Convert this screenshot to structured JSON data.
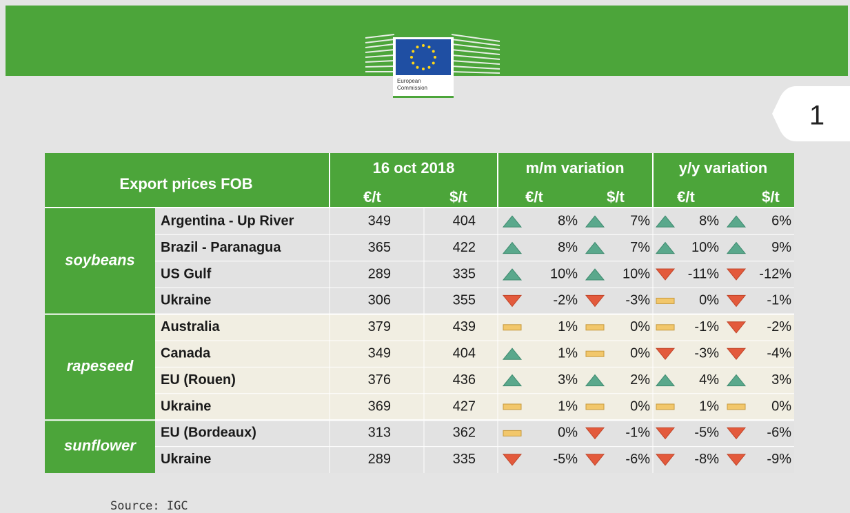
{
  "logo": {
    "lines": [
      "European",
      "Commission"
    ]
  },
  "page_number": "1",
  "table": {
    "header": {
      "title": "Export prices FOB",
      "groups": [
        "16 oct 2018",
        "m/m variation",
        "y/y variation"
      ],
      "units": [
        "€/t",
        "$/t",
        "€/t",
        "$/t",
        "€/t",
        "$/t"
      ]
    },
    "groups": [
      {
        "name": "soybeans",
        "rows": [
          {
            "origin": "Argentina - Up River",
            "prices": [
              "349",
              "404"
            ],
            "variations": [
              {
                "text": "8%",
                "trend": "up"
              },
              {
                "text": "7%",
                "trend": "up"
              },
              {
                "text": "8%",
                "trend": "up"
              },
              {
                "text": "6%",
                "trend": "up"
              }
            ]
          },
          {
            "origin": "Brazil - Paranagua",
            "prices": [
              "365",
              "422"
            ],
            "variations": [
              {
                "text": "8%",
                "trend": "up"
              },
              {
                "text": "7%",
                "trend": "up"
              },
              {
                "text": "10%",
                "trend": "up"
              },
              {
                "text": "9%",
                "trend": "up"
              }
            ]
          },
          {
            "origin": "US Gulf",
            "prices": [
              "289",
              "335"
            ],
            "variations": [
              {
                "text": "10%",
                "trend": "up"
              },
              {
                "text": "10%",
                "trend": "up"
              },
              {
                "text": "-11%",
                "trend": "down"
              },
              {
                "text": "-12%",
                "trend": "down"
              }
            ]
          },
          {
            "origin": "Ukraine",
            "prices": [
              "306",
              "355"
            ],
            "variations": [
              {
                "text": "-2%",
                "trend": "down"
              },
              {
                "text": "-3%",
                "trend": "down"
              },
              {
                "text": "0%",
                "trend": "flat"
              },
              {
                "text": "-1%",
                "trend": "down"
              }
            ]
          }
        ]
      },
      {
        "name": "rapeseed",
        "rows": [
          {
            "origin": "Australia",
            "prices": [
              "379",
              "439"
            ],
            "variations": [
              {
                "text": "1%",
                "trend": "flat"
              },
              {
                "text": "0%",
                "trend": "flat"
              },
              {
                "text": "-1%",
                "trend": "flat"
              },
              {
                "text": "-2%",
                "trend": "down"
              }
            ]
          },
          {
            "origin": "Canada",
            "prices": [
              "349",
              "404"
            ],
            "variations": [
              {
                "text": "1%",
                "trend": "up"
              },
              {
                "text": "0%",
                "trend": "flat"
              },
              {
                "text": "-3%",
                "trend": "down"
              },
              {
                "text": "-4%",
                "trend": "down"
              }
            ]
          },
          {
            "origin": "EU (Rouen)",
            "prices": [
              "376",
              "436"
            ],
            "variations": [
              {
                "text": "3%",
                "trend": "up"
              },
              {
                "text": "2%",
                "trend": "up"
              },
              {
                "text": "4%",
                "trend": "up"
              },
              {
                "text": "3%",
                "trend": "up"
              }
            ]
          },
          {
            "origin": "Ukraine",
            "prices": [
              "369",
              "427"
            ],
            "variations": [
              {
                "text": "1%",
                "trend": "flat"
              },
              {
                "text": "0%",
                "trend": "flat"
              },
              {
                "text": "1%",
                "trend": "flat"
              },
              {
                "text": "0%",
                "trend": "flat"
              }
            ]
          }
        ]
      },
      {
        "name": "sunflower",
        "rows": [
          {
            "origin": "EU (Bordeaux)",
            "prices": [
              "313",
              "362"
            ],
            "variations": [
              {
                "text": "0%",
                "trend": "flat"
              },
              {
                "text": "-1%",
                "trend": "down"
              },
              {
                "text": "-5%",
                "trend": "down"
              },
              {
                "text": "-6%",
                "trend": "down"
              }
            ]
          },
          {
            "origin": "Ukraine",
            "prices": [
              "289",
              "335"
            ],
            "variations": [
              {
                "text": "-5%",
                "trend": "down"
              },
              {
                "text": "-6%",
                "trend": "down"
              },
              {
                "text": "-8%",
                "trend": "down"
              },
              {
                "text": "-9%",
                "trend": "down"
              }
            ]
          }
        ]
      }
    ]
  },
  "source": "Source:  IGC"
}
